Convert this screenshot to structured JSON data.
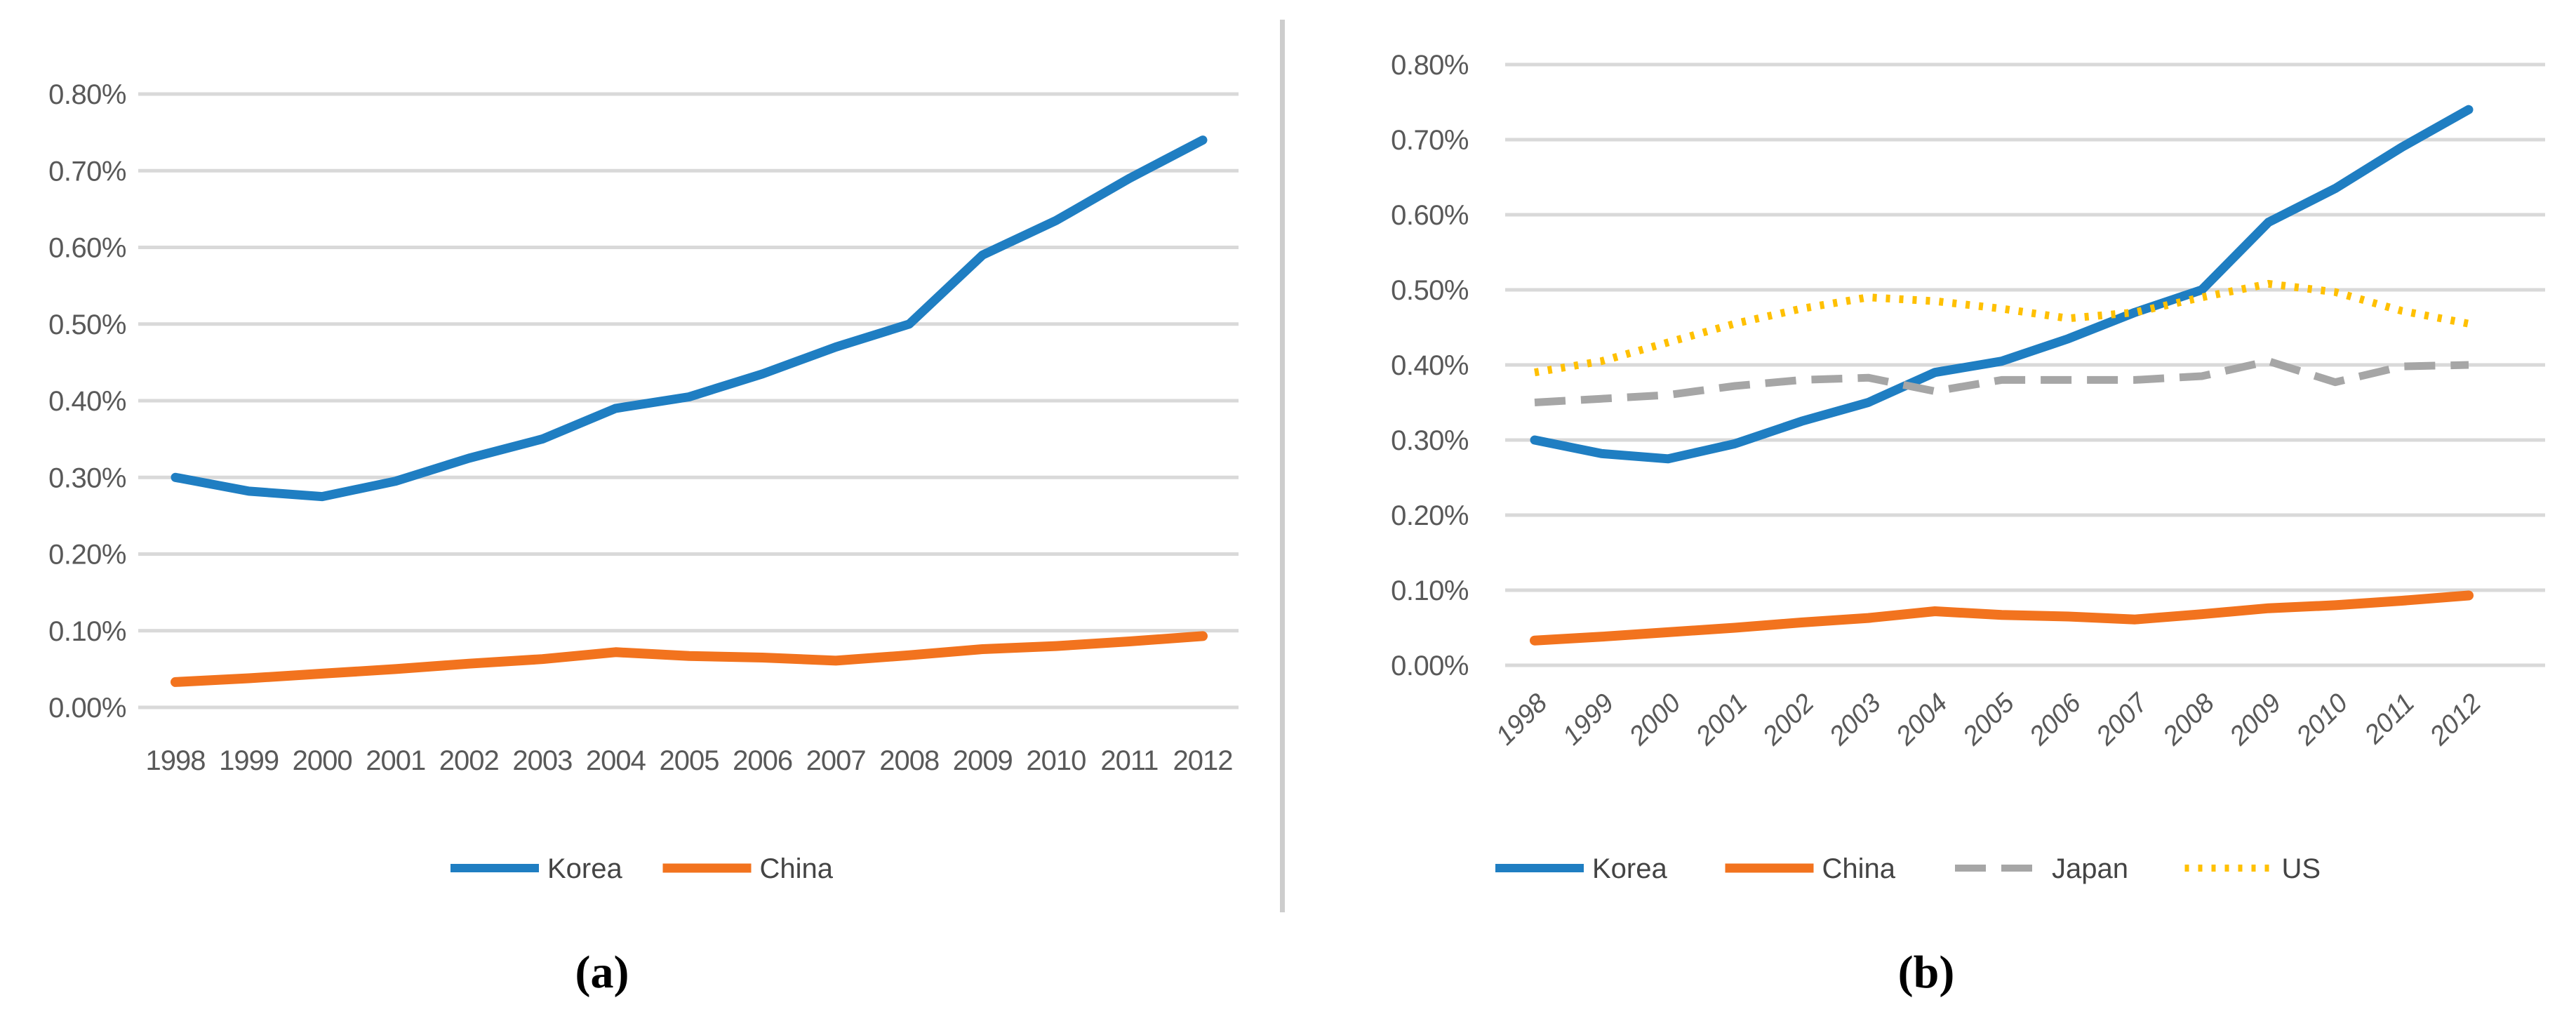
{
  "figure": {
    "panels": [
      {
        "id": "a",
        "caption": "(a)",
        "y_ticks": [
          "0.80%",
          "0.70%",
          "0.60%",
          "0.50%",
          "0.40%",
          "0.30%",
          "0.20%",
          "0.10%",
          "0.00%"
        ],
        "x_ticks": [
          "1998",
          "1999",
          "2000",
          "2001",
          "2002",
          "2003",
          "2004",
          "2005",
          "2006",
          "2007",
          "2008",
          "2009",
          "2010",
          "2011",
          "2012"
        ],
        "legend": [
          "Korea",
          "China"
        ]
      },
      {
        "id": "b",
        "caption": "(b)",
        "y_ticks": [
          "0.80%",
          "0.70%",
          "0.60%",
          "0.50%",
          "0.40%",
          "0.30%",
          "0.20%",
          "0.10%",
          "0.00%"
        ],
        "x_ticks": [
          "1998",
          "1999",
          "2000",
          "2001",
          "2002",
          "2003",
          "2004",
          "2005",
          "2006",
          "2007",
          "2008",
          "2009",
          "2010",
          "2011",
          "2012"
        ],
        "legend": [
          "Korea",
          "China",
          "Japan",
          "US"
        ]
      }
    ],
    "colors": {
      "Korea": "#1f7ec2",
      "China": "#f2731e",
      "Japan": "#a6a6a6",
      "US": "#ffc000",
      "grid": "#d9d9d9",
      "axis_text": "#595959",
      "divider": "#cdcdcd"
    }
  },
  "chart_data": [
    {
      "type": "line",
      "title": "",
      "xlabel": "",
      "ylabel": "",
      "unit": "%",
      "x": [
        1998,
        1999,
        2000,
        2001,
        2002,
        2003,
        2004,
        2005,
        2006,
        2007,
        2008,
        2009,
        2010,
        2011,
        2012
      ],
      "series": [
        {
          "name": "Korea",
          "style": "solid",
          "values": [
            0.3,
            0.282,
            0.275,
            0.295,
            0.325,
            0.35,
            0.39,
            0.405,
            0.435,
            0.47,
            0.5,
            0.59,
            0.635,
            0.69,
            0.74
          ]
        },
        {
          "name": "China",
          "style": "solid",
          "values": [
            0.033,
            0.038,
            0.044,
            0.05,
            0.057,
            0.063,
            0.072,
            0.067,
            0.065,
            0.061,
            0.068,
            0.076,
            0.08,
            0.086,
            0.093
          ]
        }
      ],
      "ylim": [
        0,
        0.8
      ],
      "ytick_step": 0.1,
      "grid": true,
      "legend_position": "bottom",
      "x_labels_rotated": false
    },
    {
      "type": "line",
      "title": "",
      "xlabel": "",
      "ylabel": "",
      "unit": "%",
      "x": [
        1998,
        1999,
        2000,
        2001,
        2002,
        2003,
        2004,
        2005,
        2006,
        2007,
        2008,
        2009,
        2010,
        2011,
        2012
      ],
      "series": [
        {
          "name": "Korea",
          "style": "solid",
          "values": [
            0.3,
            0.282,
            0.275,
            0.295,
            0.325,
            0.35,
            0.39,
            0.405,
            0.435,
            0.47,
            0.5,
            0.59,
            0.635,
            0.69,
            0.74
          ]
        },
        {
          "name": "China",
          "style": "solid",
          "values": [
            0.033,
            0.038,
            0.044,
            0.05,
            0.057,
            0.063,
            0.072,
            0.067,
            0.065,
            0.061,
            0.068,
            0.076,
            0.08,
            0.086,
            0.093
          ]
        },
        {
          "name": "Japan",
          "style": "dashed",
          "values": [
            0.35,
            0.355,
            0.36,
            0.372,
            0.38,
            0.383,
            0.365,
            0.38,
            0.38,
            0.38,
            0.385,
            0.405,
            0.377,
            0.398,
            0.4
          ]
        },
        {
          "name": "US",
          "style": "dotted",
          "values": [
            0.39,
            0.405,
            0.43,
            0.455,
            0.475,
            0.49,
            0.485,
            0.475,
            0.462,
            0.47,
            0.49,
            0.508,
            0.497,
            0.472,
            0.455
          ]
        }
      ],
      "ylim": [
        0,
        0.8
      ],
      "ytick_step": 0.1,
      "grid": true,
      "legend_position": "bottom",
      "x_labels_rotated": true
    }
  ]
}
